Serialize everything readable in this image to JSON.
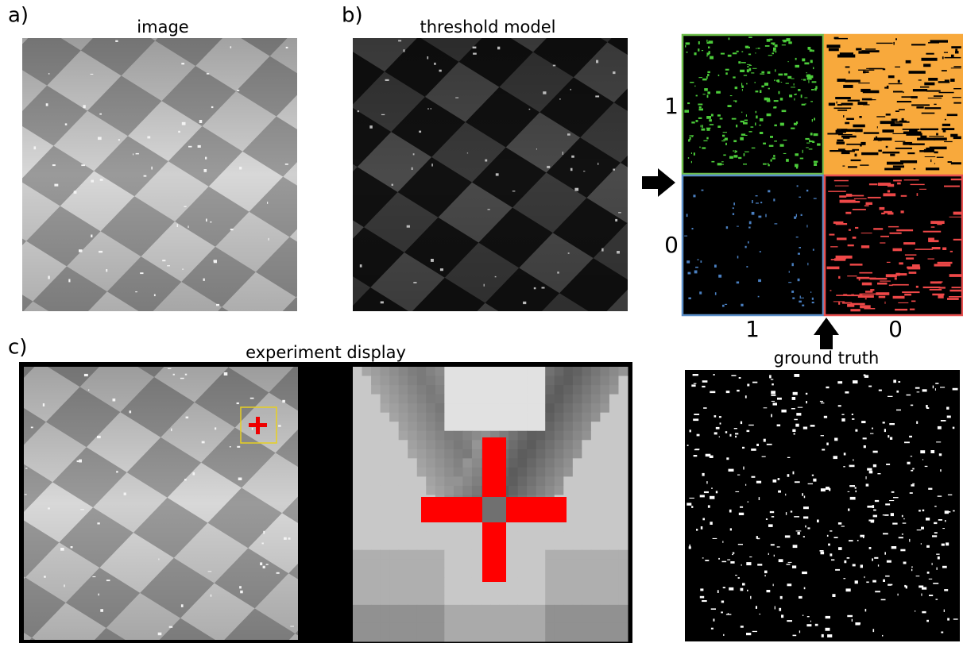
{
  "panels": {
    "a": {
      "label": "a)",
      "title": "image"
    },
    "b": {
      "label": "b)",
      "title": "threshold model"
    },
    "c": {
      "label": "c)",
      "title": "experiment display"
    }
  },
  "confusion": {
    "row_labels": [
      "1",
      "0"
    ],
    "column_labels": [
      "1",
      "0"
    ],
    "caption": "ground truth"
  }
}
